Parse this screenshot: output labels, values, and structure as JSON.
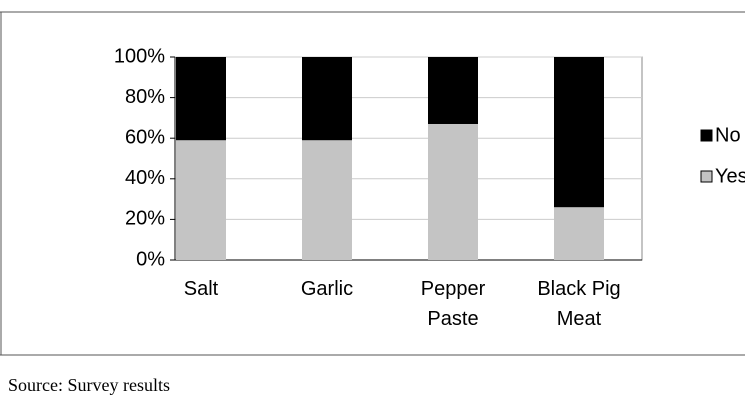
{
  "chart_data": {
    "type": "stacked_bar",
    "categories": [
      [
        "Salt"
      ],
      [
        "Garlic"
      ],
      [
        "Pepper",
        "Paste"
      ],
      [
        "Black Pig",
        "Meat"
      ]
    ],
    "series": [
      {
        "name": "Yes",
        "color": "#c4c4c4",
        "values": [
          59,
          59,
          67,
          26
        ]
      },
      {
        "name": "No",
        "color": "#000000",
        "values": [
          41,
          41,
          33,
          74
        ]
      }
    ],
    "ylim": [
      0,
      100
    ],
    "yticks": [
      {
        "value": 0,
        "label": "0%"
      },
      {
        "value": 20,
        "label": "20%"
      },
      {
        "value": 40,
        "label": "40%"
      },
      {
        "value": 60,
        "label": "60%"
      },
      {
        "value": 80,
        "label": "80%"
      },
      {
        "value": 100,
        "label": "100%"
      }
    ],
    "grid": true,
    "legend": "right",
    "source": "Source: Survey results"
  }
}
